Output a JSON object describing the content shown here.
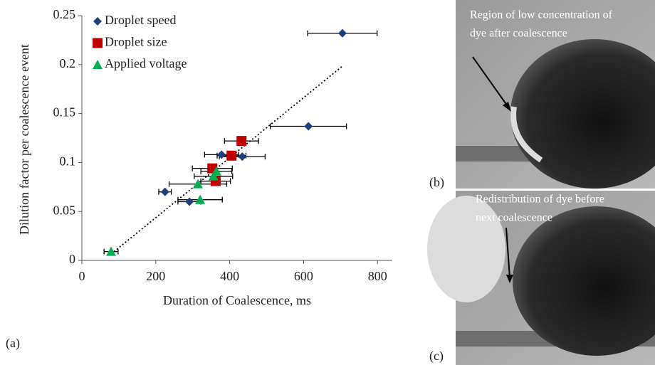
{
  "chart_data": {
    "type": "scatter",
    "x_label": "Duration of Coalescence, ms",
    "y_label": "Dilution factor per coalescence event",
    "xlim": [
      0,
      840
    ],
    "xticks": [
      0,
      200,
      400,
      600,
      800
    ],
    "ylim": [
      0,
      0.25
    ],
    "yticks": [
      0,
      0.05,
      0.1,
      0.15,
      0.2,
      0.25
    ],
    "legend": "upper left",
    "series": [
      {
        "name": "Droplet speed",
        "color": "#1f3f7a",
        "marker": "diamond",
        "x": [
          705,
          613,
          434,
          378,
          225,
          291
        ],
        "values": [
          0.232,
          0.137,
          0.106,
          0.108,
          0.07,
          0.06
        ],
        "xerr": [
          94,
          103,
          62,
          46,
          17,
          31
        ]
      },
      {
        "name": "Droplet size",
        "color": "#c00000",
        "marker": "square",
        "x": [
          432,
          405,
          353,
          362
        ],
        "values": [
          0.122,
          0.107,
          0.094,
          0.081
        ],
        "xerr": [
          46,
          39,
          54,
          40
        ]
      },
      {
        "name": "Applied voltage",
        "color": "#00b050",
        "marker": "triangle",
        "x": [
          79,
          320,
          314,
          356,
          364
        ],
        "values": [
          0.009,
          0.062,
          0.078,
          0.086,
          0.091
        ],
        "xerr": [
          19,
          60,
          78,
          52,
          42
        ]
      }
    ],
    "trendline": {
      "x": [
        87,
        707
      ],
      "values": [
        0.009,
        0.199
      ]
    }
  },
  "figure": {
    "panel_label": "(a)",
    "images": [
      {
        "label": "(b)",
        "annotation": [
          "Region of low concentration of",
          "dye after coalescence"
        ]
      },
      {
        "label": "(c)",
        "annotation": [
          "Redistribution of dye before",
          "next coalescence"
        ]
      }
    ]
  }
}
